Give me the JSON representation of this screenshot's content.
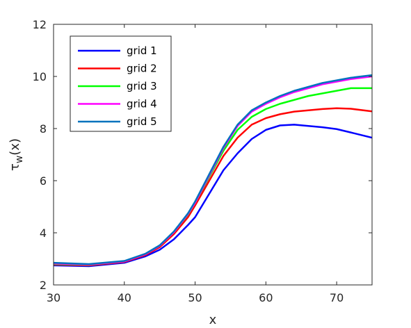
{
  "chart_data": {
    "type": "line",
    "title": "",
    "xlabel": "x",
    "ylabel": "τ_w(x)",
    "xlim": [
      30,
      75
    ],
    "ylim": [
      2,
      12
    ],
    "xticks": [
      "30",
      "40",
      "50",
      "60",
      "70"
    ],
    "yticks": [
      "2",
      "4",
      "6",
      "8",
      "10",
      "12"
    ],
    "grid": false,
    "legend_position": "top-left",
    "x": [
      30,
      35,
      40,
      43,
      45,
      47,
      49,
      50,
      52,
      54,
      56,
      58,
      60,
      62,
      64,
      66,
      68,
      70,
      72,
      75
    ],
    "series": [
      {
        "name": "grid 1",
        "color": "#0000ff",
        "values": [
          2.75,
          2.72,
          2.85,
          3.1,
          3.35,
          3.75,
          4.3,
          4.6,
          5.5,
          6.4,
          7.05,
          7.6,
          7.95,
          8.12,
          8.15,
          8.1,
          8.05,
          7.98,
          7.85,
          7.65
        ]
      },
      {
        "name": "grid 2",
        "color": "#ff0000",
        "values": [
          2.78,
          2.75,
          2.88,
          3.15,
          3.45,
          3.95,
          4.6,
          5.05,
          6.0,
          6.95,
          7.65,
          8.15,
          8.4,
          8.55,
          8.65,
          8.7,
          8.75,
          8.78,
          8.76,
          8.66
        ]
      },
      {
        "name": "grid 3",
        "color": "#00ff00",
        "values": [
          2.8,
          2.77,
          2.9,
          3.18,
          3.5,
          4.02,
          4.7,
          5.15,
          6.15,
          7.15,
          7.95,
          8.45,
          8.75,
          8.95,
          9.1,
          9.25,
          9.35,
          9.45,
          9.55,
          9.55
        ]
      },
      {
        "name": "grid 4",
        "color": "#ff00ff",
        "values": [
          2.82,
          2.78,
          2.9,
          3.18,
          3.5,
          4.02,
          4.72,
          5.15,
          6.2,
          7.25,
          8.1,
          8.65,
          8.95,
          9.2,
          9.4,
          9.55,
          9.7,
          9.8,
          9.9,
          10.0
        ]
      },
      {
        "name": "grid 5",
        "color": "#0072bd",
        "values": [
          2.85,
          2.8,
          2.92,
          3.2,
          3.52,
          4.05,
          4.75,
          5.2,
          6.25,
          7.3,
          8.15,
          8.7,
          9.0,
          9.25,
          9.45,
          9.6,
          9.75,
          9.85,
          9.95,
          10.05
        ]
      }
    ]
  }
}
